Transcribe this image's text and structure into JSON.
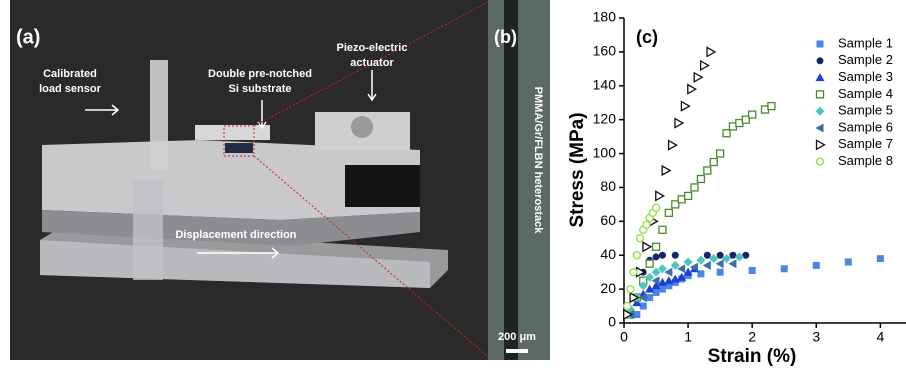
{
  "panel_a": {
    "label": "(a)",
    "annotations": [
      {
        "lines": [
          "Calibrated",
          "load sensor"
        ]
      },
      {
        "lines": [
          "Double pre-notched",
          "Si substrate"
        ]
      },
      {
        "lines": [
          "Piezo-electric",
          "actuator"
        ]
      },
      {
        "lines": [
          "Displacement direction"
        ]
      }
    ]
  },
  "panel_b": {
    "label": "(b)",
    "caption": "PMMA/Gr/FLBN heterostack",
    "scale_bar": "200 μm"
  },
  "chart_data": {
    "type": "scatter",
    "panel_label": "(c)",
    "x_label": "Strain (%)",
    "y_label": "Stress (MPa)",
    "xlim": [
      0,
      4.4
    ],
    "ylim": [
      0,
      180
    ],
    "xticks": [
      0,
      1,
      2,
      3,
      4
    ],
    "yticks": [
      0,
      20,
      40,
      60,
      80,
      100,
      120,
      140,
      160,
      180
    ],
    "legend": "upper right",
    "series": [
      {
        "name": "Sample 1",
        "color": "#4a86e8",
        "marker": "square",
        "x": [
          0.2,
          0.3,
          0.4,
          0.5,
          0.6,
          0.7,
          0.8,
          0.9,
          1.0,
          1.2,
          1.5,
          2.0,
          2.5,
          3.0,
          3.5,
          4.0
        ],
        "values": [
          5,
          10,
          15,
          18,
          20,
          22,
          24,
          26,
          28,
          29,
          30,
          31,
          32,
          34,
          36,
          38
        ]
      },
      {
        "name": "Sample 2",
        "color": "#14246e",
        "marker": "circle",
        "x": [
          0.3,
          0.4,
          0.5,
          0.6,
          0.8,
          1.3,
          1.5,
          1.7,
          1.9
        ],
        "values": [
          30,
          37,
          39,
          40,
          40,
          40,
          40,
          40,
          40
        ]
      },
      {
        "name": "Sample 3",
        "color": "#1f3fd0",
        "marker": "triangle-up",
        "x": [
          0.1,
          0.2,
          0.3,
          0.4,
          0.5,
          0.6,
          0.7,
          0.8,
          0.9,
          1.0,
          1.1
        ],
        "values": [
          5,
          12,
          17,
          20,
          22,
          24,
          25,
          26,
          27,
          30,
          32
        ]
      },
      {
        "name": "Sample 4",
        "color": "#4a8a2a",
        "marker": "square-open",
        "x": [
          0.1,
          0.2,
          0.3,
          0.4,
          0.5,
          0.6,
          0.7,
          0.8,
          0.9,
          1.0,
          1.1,
          1.2,
          1.3,
          1.4,
          1.5,
          1.6,
          1.7,
          1.8,
          1.9,
          2.0,
          2.2,
          2.3
        ],
        "values": [
          5,
          15,
          25,
          35,
          45,
          55,
          65,
          70,
          73,
          75,
          80,
          85,
          90,
          95,
          100,
          112,
          116,
          118,
          120,
          123,
          126,
          128
        ]
      },
      {
        "name": "Sample 5",
        "color": "#4fc4c0",
        "marker": "diamond",
        "x": [
          0.1,
          0.2,
          0.3,
          0.4,
          0.5,
          0.6,
          0.8,
          1.0,
          1.2,
          1.4,
          1.6,
          1.8
        ],
        "values": [
          8,
          15,
          22,
          27,
          30,
          32,
          34,
          36,
          37,
          38,
          38,
          39
        ]
      },
      {
        "name": "Sample 6",
        "color": "#3a6faa",
        "marker": "triangle-left",
        "x": [
          0.1,
          0.3,
          0.5,
          0.7,
          0.9,
          1.1,
          1.3,
          1.5,
          1.7
        ],
        "values": [
          5,
          15,
          25,
          30,
          32,
          33,
          34,
          35,
          35
        ]
      },
      {
        "name": "Sample 7",
        "color": "#111111",
        "marker": "triangle-right-open",
        "x": [
          0.05,
          0.15,
          0.25,
          0.35,
          0.45,
          0.55,
          0.65,
          0.75,
          0.85,
          0.95,
          1.05,
          1.15,
          1.25,
          1.35
        ],
        "values": [
          5,
          15,
          30,
          45,
          60,
          75,
          90,
          105,
          118,
          128,
          138,
          145,
          152,
          160
        ]
      },
      {
        "name": "Sample 8",
        "color": "#90e040",
        "marker": "circle-open",
        "x": [
          0.05,
          0.1,
          0.15,
          0.2,
          0.25,
          0.3,
          0.35,
          0.4,
          0.45,
          0.5
        ],
        "values": [
          10,
          20,
          30,
          40,
          50,
          55,
          58,
          62,
          65,
          68
        ]
      }
    ]
  }
}
